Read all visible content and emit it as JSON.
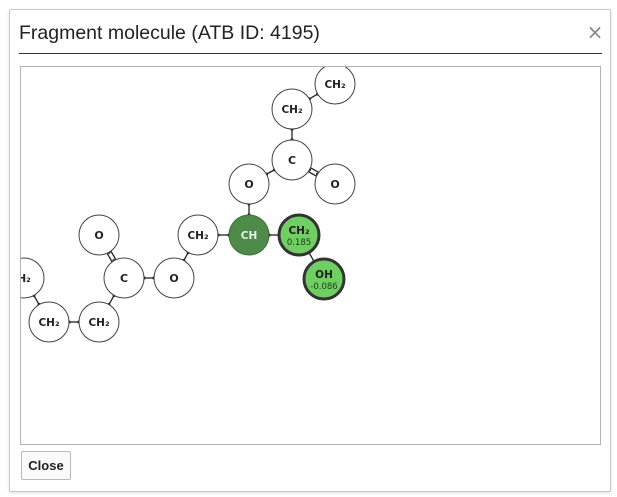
{
  "dialog": {
    "title": "Fragment molecule (ATB ID: 4195)",
    "close_icon": "×",
    "close_button_label": "Close"
  },
  "molecule": {
    "atoms": [
      {
        "id": "a1",
        "label": "CH₂",
        "style": "plain"
      },
      {
        "id": "a2",
        "label": "CH₂",
        "style": "plain"
      },
      {
        "id": "a3",
        "label": "C",
        "style": "plain"
      },
      {
        "id": "a4",
        "label": "O",
        "style": "plain"
      },
      {
        "id": "a5",
        "label": "O",
        "style": "plain"
      },
      {
        "id": "a6",
        "label": "CH",
        "style": "selected"
      },
      {
        "id": "a7",
        "label": "CH₂",
        "charge": "0.185",
        "style": "highlight"
      },
      {
        "id": "a8",
        "label": "OH",
        "charge": "-0.086",
        "style": "highlight"
      },
      {
        "id": "a9",
        "label": "CH₂",
        "style": "plain"
      },
      {
        "id": "a10",
        "label": "O",
        "style": "plain"
      },
      {
        "id": "a11",
        "label": "C",
        "style": "plain"
      },
      {
        "id": "a12",
        "label": "O",
        "style": "plain"
      },
      {
        "id": "a13",
        "label": "H₂",
        "style": "plain"
      },
      {
        "id": "a14",
        "label": "CH₂",
        "style": "plain"
      },
      {
        "id": "a15",
        "label": "CH₂",
        "style": "plain"
      }
    ],
    "bonds": [
      {
        "from": "a1",
        "to": "a2",
        "order": 1
      },
      {
        "from": "a2",
        "to": "a3",
        "order": 1
      },
      {
        "from": "a3",
        "to": "a5",
        "order": 2
      },
      {
        "from": "a3",
        "to": "a4",
        "order": 1
      },
      {
        "from": "a4",
        "to": "a6",
        "order": 1
      },
      {
        "from": "a6",
        "to": "a7",
        "order": 1
      },
      {
        "from": "a7",
        "to": "a8",
        "order": 1
      },
      {
        "from": "a6",
        "to": "a9",
        "order": 1
      },
      {
        "from": "a9",
        "to": "a10",
        "order": 1
      },
      {
        "from": "a10",
        "to": "a11",
        "order": 1
      },
      {
        "from": "a11",
        "to": "a12",
        "order": 2
      },
      {
        "from": "a11",
        "to": "a15",
        "order": 1
      },
      {
        "from": "a15",
        "to": "a14",
        "order": 1
      },
      {
        "from": "a14",
        "to": "a13",
        "order": 1
      }
    ],
    "colors": {
      "selected_fill": "#4e8a49",
      "selected_text": "#e8f3e6",
      "highlight_fill": "#6fcf62",
      "plain_fill": "#ffffff",
      "stroke": "#333333"
    }
  }
}
